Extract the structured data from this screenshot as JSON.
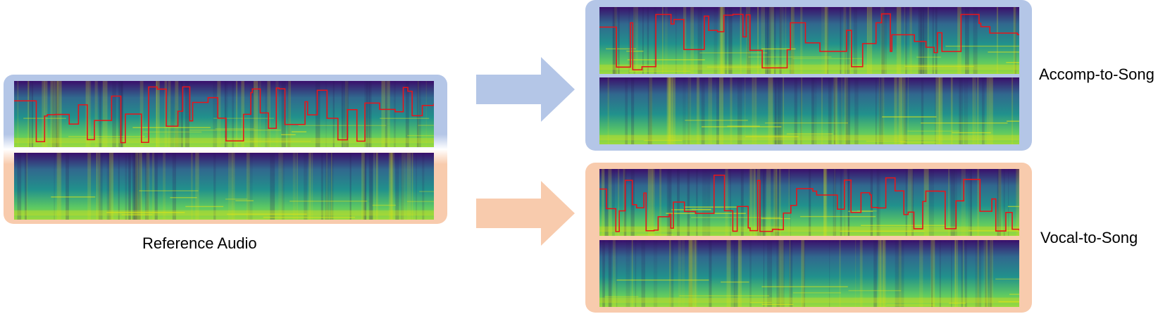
{
  "reference": {
    "label": "Reference Audio"
  },
  "outputs": [
    {
      "label": "Accomp-to-Song",
      "color": "#b4c6e7"
    },
    {
      "label": "Vocal-to-Song",
      "color": "#f8cbad"
    }
  ],
  "colors": {
    "accomp_frame": "#b4c6e7",
    "vocal_frame": "#f8cbad",
    "pitch_contour": "#e8141b",
    "spectrogram_low": "#3a0f6b",
    "spectrogram_mid": "#21918c",
    "spectrogram_high": "#dde318"
  }
}
